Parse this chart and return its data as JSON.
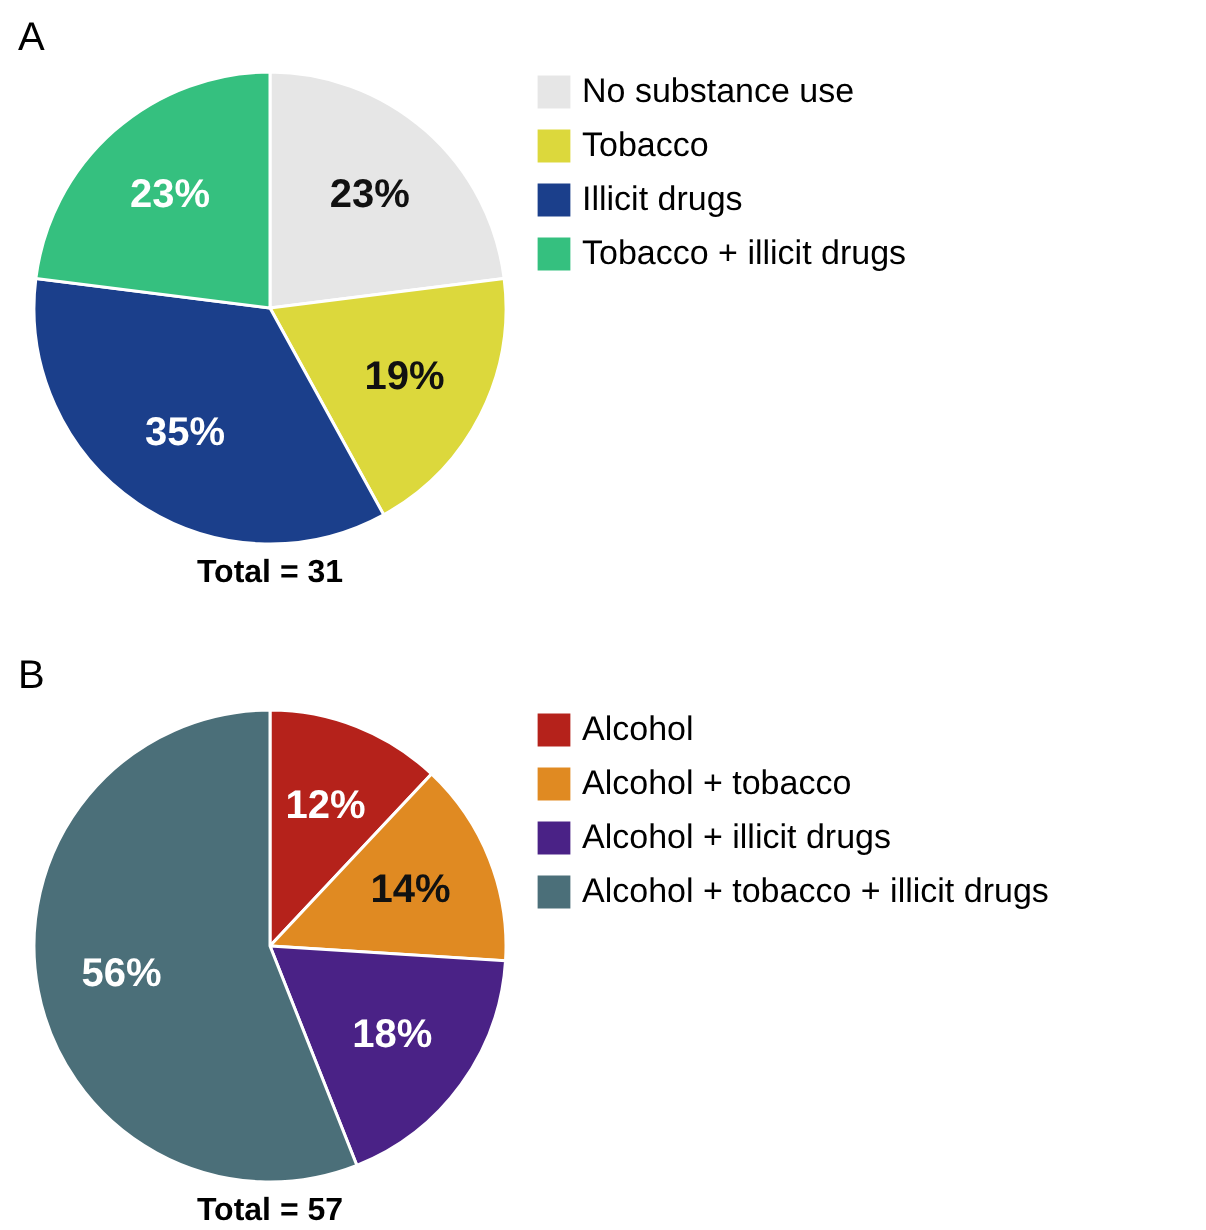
{
  "chart_data": [
    {
      "type": "pie",
      "title": "A",
      "categories": [
        "No substance use",
        "Tobacco",
        "Illicit drugs",
        "Tobacco + illicit drugs"
      ],
      "values": [
        23,
        19,
        35,
        23
      ],
      "value_labels": [
        "23%",
        "19%",
        "35%",
        "23%"
      ],
      "colors": [
        "#e6e6e6",
        "#dcd83c",
        "#1b3f8b",
        "#35c07f"
      ],
      "legend": "right",
      "annotations": [
        "Total = 31"
      ]
    },
    {
      "type": "pie",
      "title": "B",
      "categories": [
        "Alcohol",
        "Alcohol + tobacco",
        "Alcohol + illicit drugs",
        "Alcohol + tobacco + illicit drugs"
      ],
      "values": [
        12,
        14,
        18,
        56
      ],
      "value_labels": [
        "12%",
        "14%",
        "18%",
        "56%"
      ],
      "colors": [
        "#b5221b",
        "#e08a22",
        "#4a2286",
        "#4b6f79"
      ],
      "legend": "right",
      "annotations": [
        "Total = 57"
      ]
    }
  ]
}
